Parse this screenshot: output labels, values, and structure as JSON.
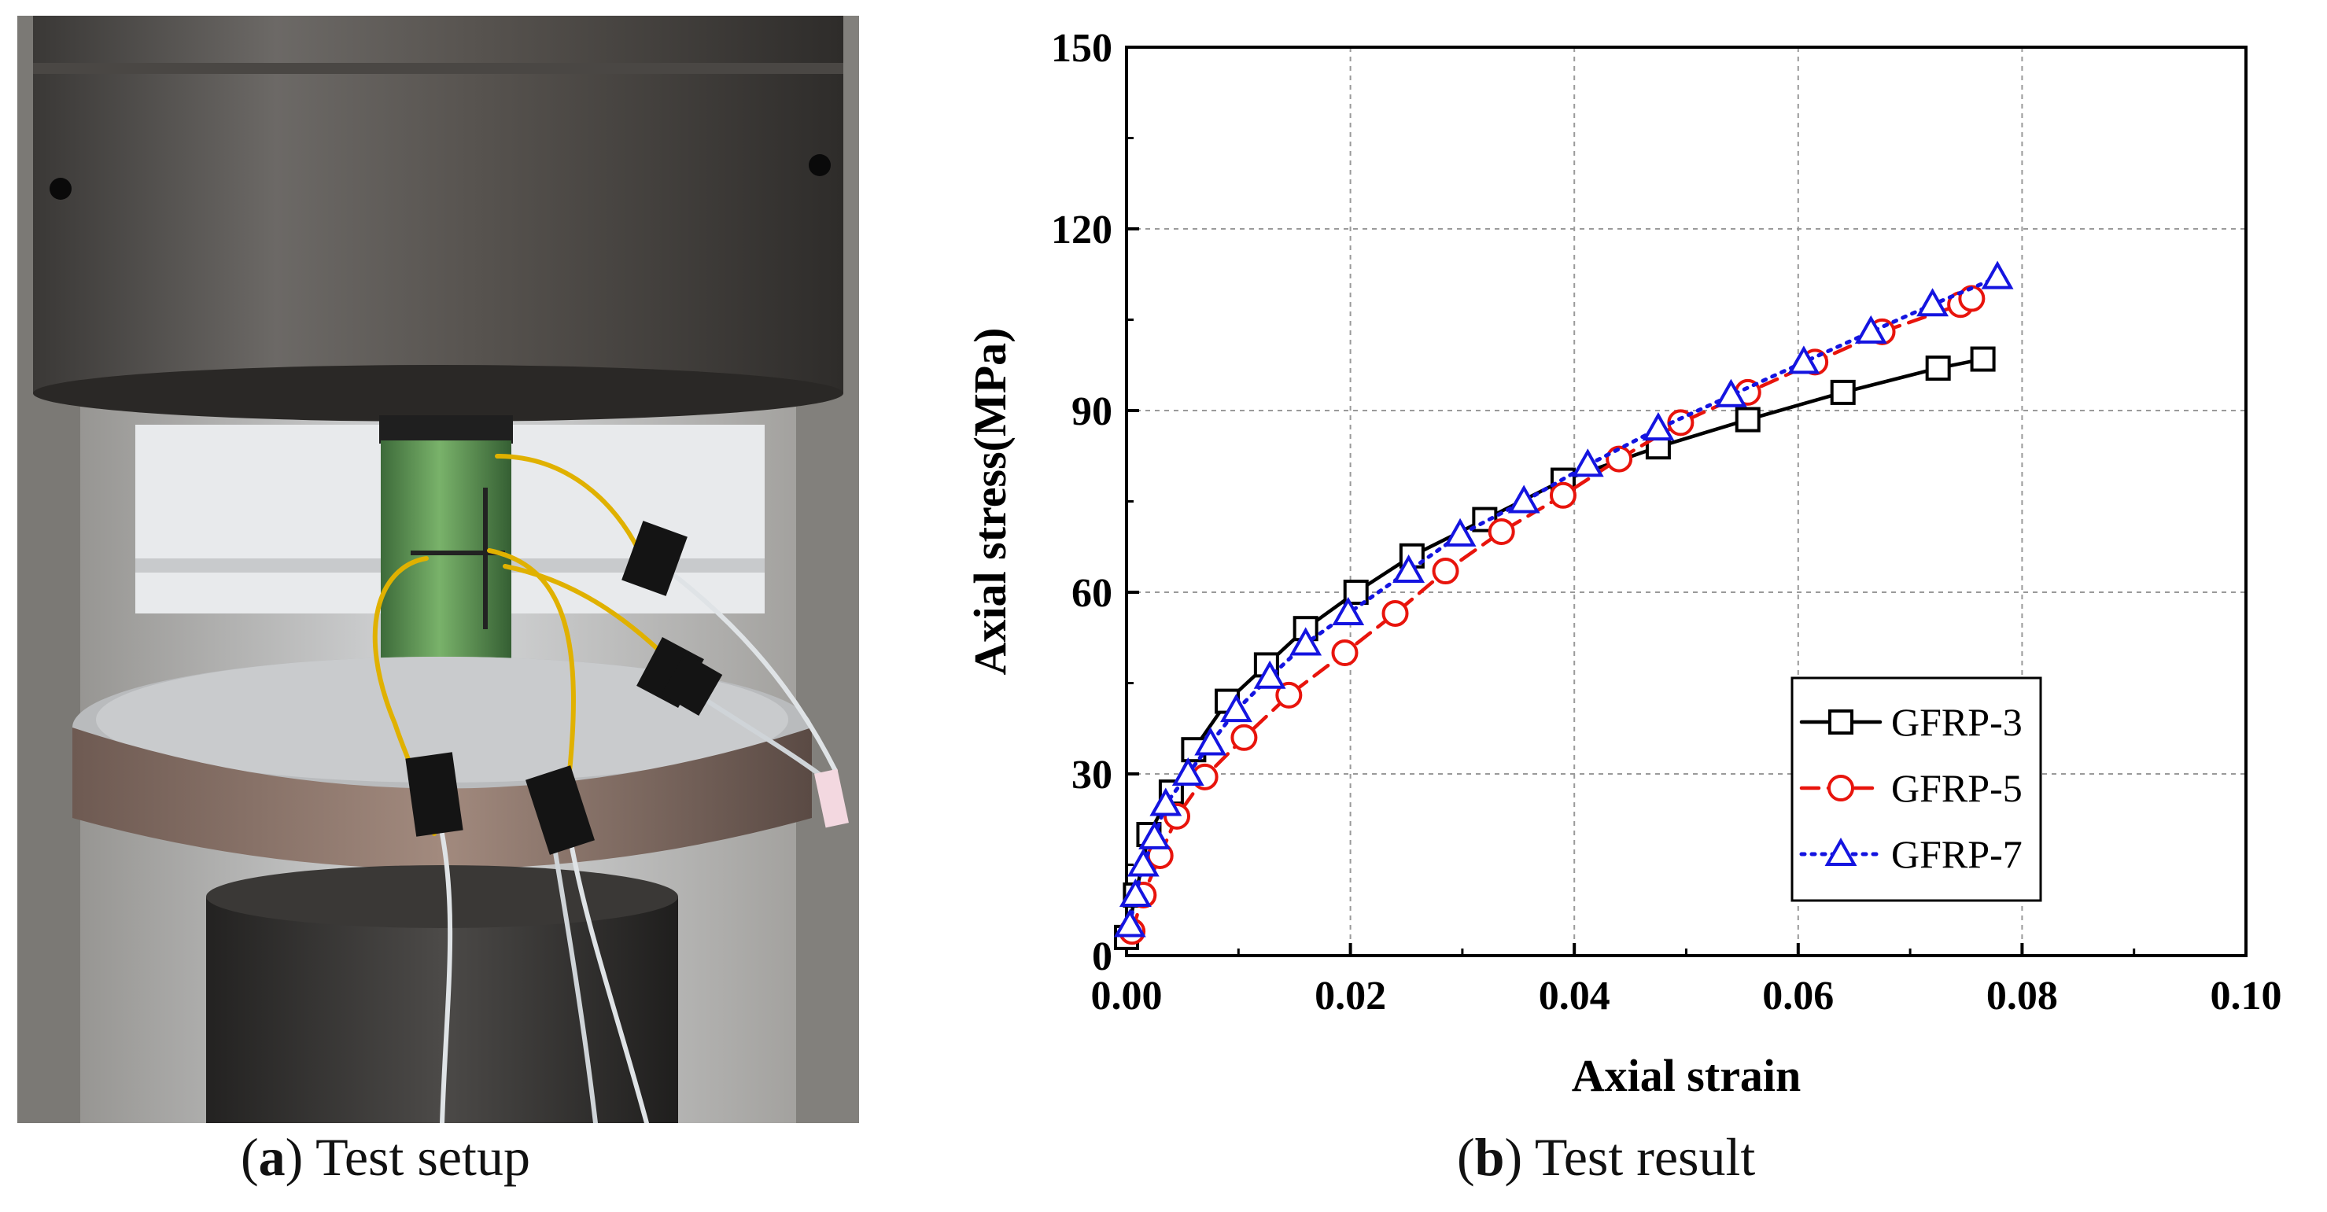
{
  "panel_a": {
    "caption_letter": "a",
    "caption_text": "Test setup",
    "photo_description_icon": "compression-test-machine-photo"
  },
  "panel_b": {
    "caption_letter": "b",
    "caption_text": "Test result"
  },
  "colors": {
    "gfrp3": "#000000",
    "gfrp5": "#e8140c",
    "gfrp7": "#1414e0"
  },
  "chart_data": {
    "type": "line",
    "title": "",
    "xlabel": "Axial strain",
    "ylabel": "Axial stress(MPa)",
    "xlim": [
      0,
      0.1
    ],
    "ylim": [
      0,
      150
    ],
    "xticks": [
      0.0,
      0.02,
      0.04,
      0.06,
      0.08,
      0.1
    ],
    "xtick_labels": [
      "0.00",
      "0.02",
      "0.04",
      "0.06",
      "0.08",
      "0.10"
    ],
    "yticks": [
      0,
      30,
      60,
      90,
      120,
      150
    ],
    "ytick_labels": [
      "0",
      "30",
      "60",
      "90",
      "120",
      "150"
    ],
    "grid": true,
    "legend_position": "bottom-right",
    "series": [
      {
        "name": "GFRP-3",
        "marker": "square",
        "linestyle": "solid",
        "x": [
          0.0,
          0.0008,
          0.002,
          0.004,
          0.006,
          0.009,
          0.0125,
          0.016,
          0.0205,
          0.0255,
          0.032,
          0.039,
          0.0475,
          0.0555,
          0.064,
          0.0725,
          0.0765
        ],
        "y": [
          3,
          10,
          20,
          27,
          34,
          42,
          48,
          54,
          60,
          66,
          72,
          78.5,
          84,
          88.5,
          93,
          97,
          98.5
        ]
      },
      {
        "name": "GFRP-5",
        "marker": "circle",
        "linestyle": "dashed",
        "x": [
          0.0005,
          0.0015,
          0.003,
          0.0045,
          0.007,
          0.0105,
          0.0145,
          0.0195,
          0.024,
          0.0285,
          0.0335,
          0.039,
          0.044,
          0.0495,
          0.0555,
          0.0615,
          0.0675,
          0.0745,
          0.0755
        ],
        "y": [
          4,
          10,
          16.5,
          23,
          29.5,
          36,
          43,
          50,
          56.5,
          63.5,
          70,
          76,
          82,
          88,
          93,
          98,
          103,
          107.5,
          108.5
        ]
      },
      {
        "name": "GFRP-7",
        "marker": "triangle",
        "linestyle": "dotted",
        "x": [
          0.0003,
          0.0008,
          0.0015,
          0.0025,
          0.0035,
          0.0055,
          0.0075,
          0.0098,
          0.0128,
          0.016,
          0.0198,
          0.0252,
          0.0298,
          0.0355,
          0.0412,
          0.0475,
          0.054,
          0.0605,
          0.0665,
          0.072,
          0.0778
        ],
        "y": [
          5,
          10,
          15,
          19.5,
          25,
          30,
          35,
          40.5,
          46,
          51.5,
          56.5,
          63.5,
          69.5,
          75,
          81,
          87,
          92.5,
          98,
          103,
          107.5,
          112
        ]
      }
    ]
  }
}
